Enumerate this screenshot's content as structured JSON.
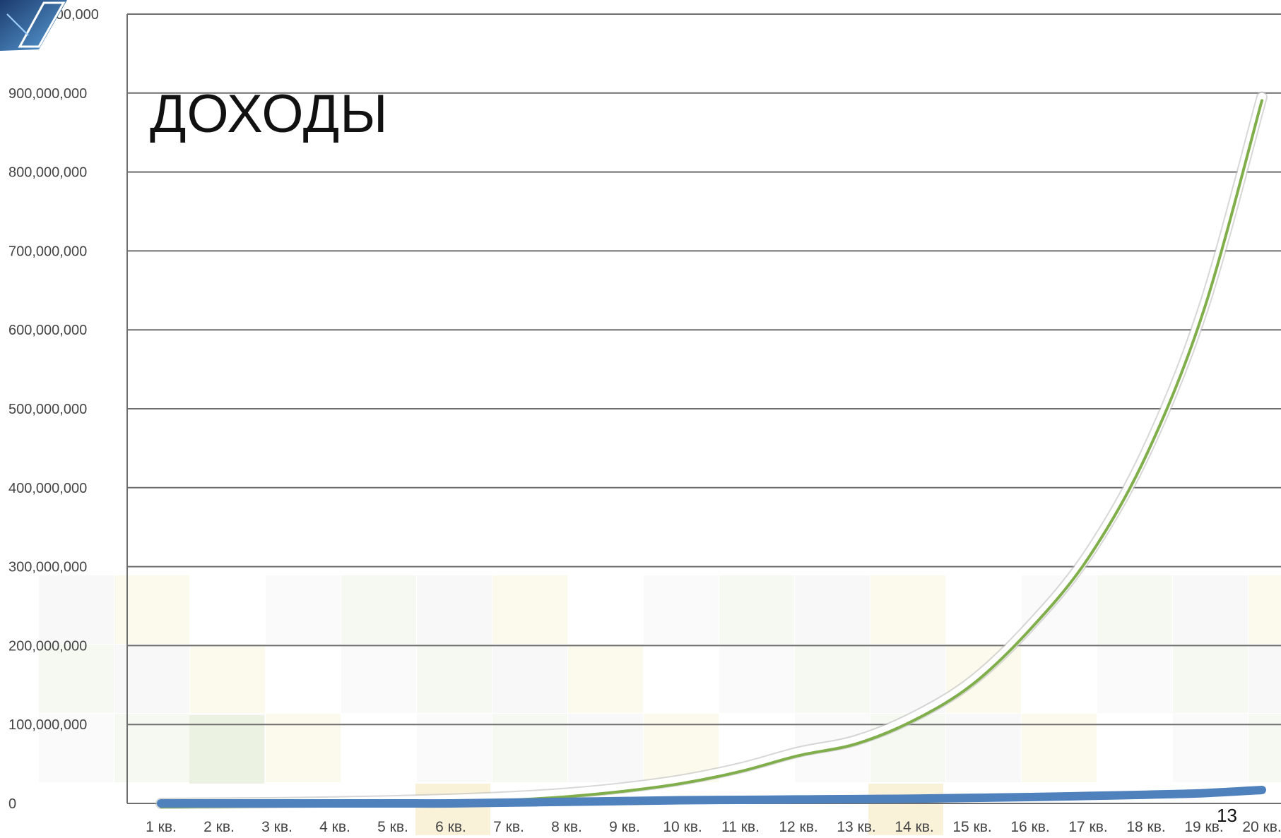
{
  "slide": {
    "title": "ДОХОДЫ",
    "page_number": "13"
  },
  "chart_data": {
    "type": "line",
    "title": "",
    "xlabel": "",
    "ylabel": "",
    "ylim": [
      0,
      1000000000
    ],
    "y_ticks": [
      0,
      100000000,
      200000000,
      300000000,
      400000000,
      500000000,
      600000000,
      700000000,
      800000000,
      900000000,
      1000000000
    ],
    "y_tick_labels": [
      "0",
      "100,000,000",
      "200,000,000",
      "300,000,000",
      "400,000,000",
      "500,000,000",
      "600,000,000",
      "700,000,000",
      "800,000,000",
      "900,000,000",
      "1,000,000,000"
    ],
    "categories": [
      "1 кв.",
      "2 кв.",
      "3 кв.",
      "4 кв.",
      "5 кв.",
      "6 кв.",
      "7 кв.",
      "8 кв.",
      "9 кв.",
      "10 кв.",
      "11 кв.",
      "12 кв.",
      "13 кв.",
      "14 кв.",
      "15 кв.",
      "16 кв.",
      "17 кв.",
      "18 кв.",
      "19 кв.",
      "20 кв."
    ],
    "grid": true,
    "legend": "none",
    "series": [
      {
        "color": "#7fae4a",
        "values": [
          0,
          500000,
          1000000,
          2000000,
          3500000,
          5500000,
          8500000,
          13000000,
          20000000,
          30000000,
          45000000,
          65000000,
          80000000,
          110000000,
          155000000,
          225000000,
          315000000,
          445000000,
          630000000,
          895000000
        ]
      },
      {
        "color": "#4f81bd",
        "values": [
          0,
          0,
          0,
          0,
          0,
          0,
          1000000,
          2000000,
          3000000,
          4000000,
          4500000,
          5000000,
          5500000,
          6000000,
          7000000,
          8000000,
          9500000,
          11000000,
          13000000,
          17000000
        ]
      }
    ]
  }
}
